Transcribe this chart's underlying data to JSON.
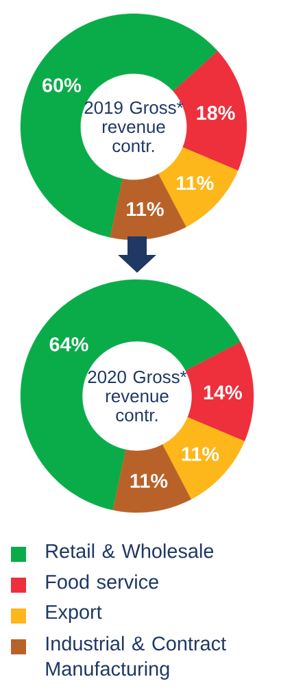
{
  "chart_data": [
    {
      "type": "donut",
      "title": "2019 Gross* revenue contr.",
      "categories": [
        null,
        null,
        null,
        null
      ],
      "values": [
        60,
        18,
        11,
        11
      ],
      "value_labels": [
        "60%",
        "18%",
        "11%",
        "11%"
      ],
      "colors": [
        "#0aac4a",
        "#ee2f3c",
        "#fdb71a",
        "#b8622a"
      ]
    },
    {
      "type": "donut",
      "title": "2020 Gross* revenue contr.",
      "categories": [
        "Retail & Wholesale",
        "Food service",
        "Export",
        "Industrial & Contract Manufacturing"
      ],
      "values": [
        64,
        14,
        11,
        11
      ],
      "value_labels": [
        "64%",
        "14%",
        "11%",
        "11%"
      ],
      "colors": [
        "#0aac4a",
        "#ee2f3c",
        "#fdb71a",
        "#b8622a"
      ],
      "legend": "bottom"
    }
  ]
}
